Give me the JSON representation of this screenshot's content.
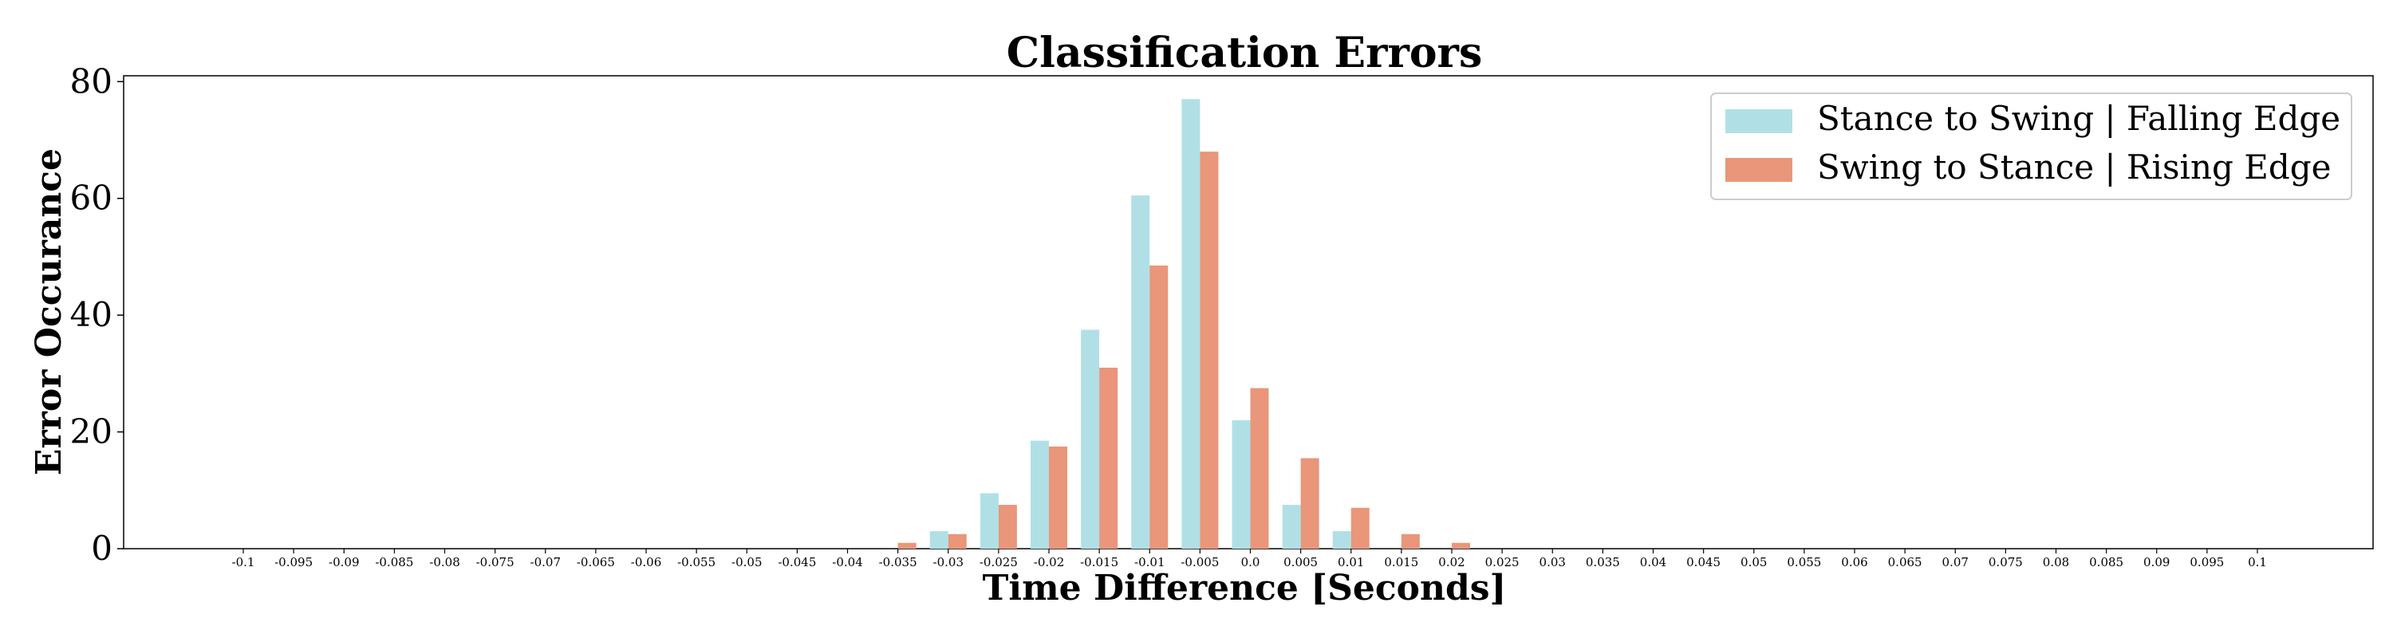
{
  "chart_data": {
    "type": "bar",
    "title": "Classification Errors",
    "xlabel": "Time Difference [Seconds]",
    "ylabel": "Error Occurance",
    "ylim": [
      0,
      81
    ],
    "yticks": [
      "0",
      "20",
      "40",
      "60",
      "80"
    ],
    "categories": [
      "-0.1",
      "-0.095",
      "-0.09",
      "-0.085",
      "-0.08",
      "-0.075",
      "-0.07",
      "-0.065",
      "-0.06",
      "-0.055",
      "-0.05",
      "-0.045",
      "-0.04",
      "-0.035",
      "-0.03",
      "-0.025",
      "-0.02",
      "-0.015",
      "-0.01",
      "-0.005",
      "0.0",
      "0.005",
      "0.01",
      "0.015",
      "0.02",
      "0.025",
      "0.03",
      "0.035",
      "0.04",
      "0.045",
      "0.05",
      "0.055",
      "0.06",
      "0.065",
      "0.07",
      "0.075",
      "0.08",
      "0.085",
      "0.09",
      "0.095",
      "0.1"
    ],
    "series": [
      {
        "name": "Stance to Swing | Falling Edge",
        "color": "#b0e0e6",
        "values": [
          0,
          0,
          0,
          0,
          0,
          0,
          0,
          0,
          0,
          0,
          0,
          0,
          0,
          0,
          3,
          9.5,
          18.5,
          37.5,
          60.5,
          77,
          22,
          7.5,
          3,
          0,
          0,
          0,
          0,
          0,
          0,
          0,
          0,
          0,
          0,
          0,
          0,
          0,
          0,
          0,
          0,
          0,
          0
        ]
      },
      {
        "name": "Swing to Stance | Rising Edge",
        "color": "#e9967a",
        "values": [
          0,
          0,
          0,
          0,
          0,
          0,
          0,
          0,
          0,
          0,
          0,
          0,
          0,
          1,
          2.5,
          7.5,
          17.5,
          31,
          48.5,
          68,
          27.5,
          15.5,
          7,
          2.5,
          1,
          0,
          0,
          0,
          0,
          0,
          0,
          0,
          0,
          0,
          0,
          0,
          0,
          0,
          0,
          0,
          0
        ]
      }
    ],
    "legend_position": "top-right",
    "grid": false
  }
}
